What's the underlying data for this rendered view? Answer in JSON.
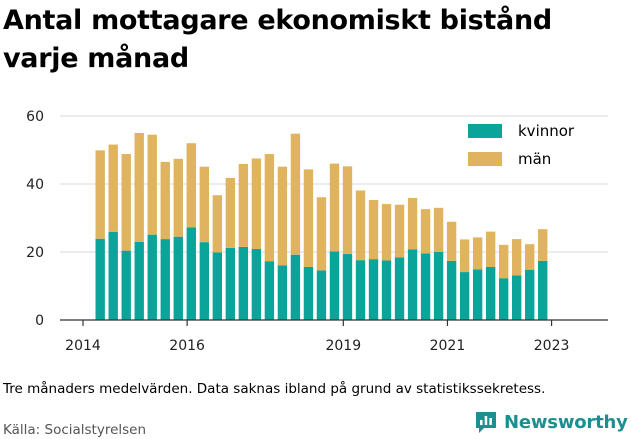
{
  "chart_data": {
    "type": "bar",
    "stacked": true,
    "title": "Antal mottagare ekonomiskt bistånd varje månad",
    "xlabel": "",
    "ylabel": "",
    "ylim": [
      0,
      60
    ],
    "yticks": [
      "0",
      "20",
      "40",
      "60"
    ],
    "xticks": [
      "2014",
      "2016",
      "2019",
      "2021",
      "2023"
    ],
    "x_range": [
      2014.0,
      2023.45
    ],
    "grid": true,
    "legend_position": "top-right",
    "x": [
      2014.33,
      2014.58,
      2014.83,
      2015.08,
      2015.33,
      2015.58,
      2015.83,
      2016.08,
      2016.33,
      2016.58,
      2016.83,
      2017.08,
      2017.33,
      2017.58,
      2017.83,
      2018.08,
      2018.33,
      2018.58,
      2018.83,
      2019.08,
      2019.33,
      2019.58,
      2019.83,
      2020.08,
      2020.33,
      2020.58,
      2020.83,
      2021.08,
      2021.33,
      2021.58,
      2021.83,
      2022.08,
      2022.33,
      2022.58,
      2022.83,
      2023.08
    ],
    "series": [
      {
        "name": "kvinnor",
        "color": "#0ba49a",
        "values": [
          23.9,
          25.9,
          20.4,
          23.0,
          25.1,
          23.8,
          24.5,
          27.2,
          22.9,
          19.9,
          21.2,
          21.5,
          20.9,
          17.3,
          16.1,
          19.2,
          15.6,
          14.6,
          20.2,
          19.4,
          17.6,
          17.9,
          17.5,
          18.4,
          20.8,
          19.6,
          20.0,
          17.4,
          14.1,
          14.9,
          15.6,
          12.3,
          13.1,
          14.8,
          17.4,
          0
        ]
      },
      {
        "name": "män",
        "color": "#e0b35e",
        "values": [
          26.0,
          25.7,
          28.4,
          32.0,
          29.4,
          22.7,
          22.9,
          24.8,
          22.2,
          16.8,
          20.6,
          24.4,
          26.6,
          31.5,
          29.0,
          35.6,
          28.7,
          21.5,
          25.8,
          25.8,
          20.5,
          17.4,
          16.6,
          15.5,
          15.1,
          13.0,
          13.0,
          11.5,
          9.6,
          9.4,
          10.4,
          9.8,
          10.7,
          7.5,
          9.3,
          0
        ]
      }
    ]
  },
  "footer": {
    "note": "Tre månaders medelvärden. Data saknas ibland på grund av statistikssekretess.",
    "source": "Källa: Socialstyrelsen",
    "brand": "Newsworthy",
    "brand_color": "#1c8f90"
  }
}
